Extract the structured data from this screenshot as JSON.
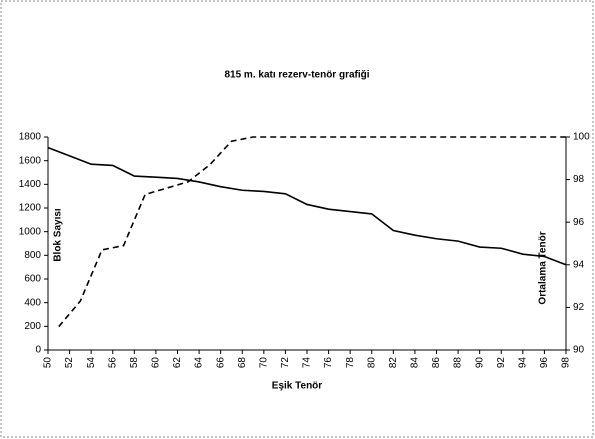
{
  "chart_data": {
    "type": "line",
    "title": "815 m. katı rezerv-tenör grafiği",
    "xlabel": "Eşik Tenör",
    "ylabel": "Blok Sayısı",
    "y2label": "Ortalama Tenör",
    "xlim": [
      50,
      98
    ],
    "xticks": [
      50,
      52,
      54,
      56,
      58,
      60,
      62,
      64,
      66,
      68,
      70,
      72,
      74,
      76,
      78,
      80,
      82,
      84,
      86,
      88,
      90,
      92,
      94,
      96,
      98
    ],
    "ylim": [
      0,
      1800
    ],
    "yticks": [
      0,
      200,
      400,
      600,
      800,
      1000,
      1200,
      1400,
      1600,
      1800
    ],
    "y2lim": [
      90,
      100
    ],
    "y2ticks": [
      90,
      92,
      94,
      96,
      98,
      100
    ],
    "series": [
      {
        "color": "#000000",
        "dash": "solid",
        "x": [
          50,
          52,
          54,
          56,
          58,
          60,
          62,
          64,
          66,
          68,
          70,
          72,
          74,
          76,
          78,
          80,
          82,
          84,
          86,
          88,
          90,
          92,
          94,
          96,
          98
        ],
        "values": [
          1710,
          1640,
          1570,
          1560,
          1470,
          1460,
          1450,
          1420,
          1380,
          1350,
          1340,
          1320,
          1230,
          1190,
          1170,
          1150,
          1010,
          970,
          940,
          920,
          870,
          860,
          810,
          790,
          720
        ]
      },
      {
        "color": "#000000",
        "dash": "dashed",
        "axis": "y2",
        "x": [
          51,
          53,
          55,
          57,
          59,
          61,
          63,
          65,
          67,
          69,
          71,
          73,
          75,
          77,
          79,
          81,
          83,
          85,
          87,
          89,
          91,
          93,
          95,
          97,
          98
        ],
        "values": [
          91.1,
          92.3,
          94.7,
          94.9,
          97.3,
          97.6,
          97.9,
          98.7,
          99.8,
          100,
          100,
          100,
          100,
          100,
          100,
          100,
          100,
          100,
          100,
          100,
          100,
          100,
          100,
          100,
          100
        ]
      }
    ]
  }
}
